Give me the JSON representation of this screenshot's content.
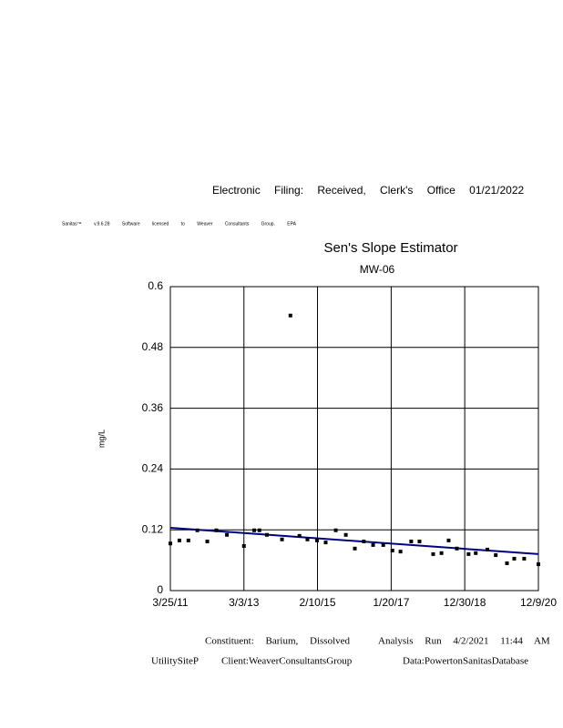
{
  "header": {
    "filing": "Electronic Filing: Received, Clerk's Office 01/21/2022",
    "license": "Sanitas™ v.9.6.28 Software licensed to Weaver Consultants Group. EPA"
  },
  "chart_data": {
    "type": "scatter",
    "title": "Sen's Slope Estimator",
    "subtitle": "MW-06",
    "y_label": "mg/L",
    "x": [
      "2011-03-25",
      "2011-06-20",
      "2011-09-15",
      "2011-12-10",
      "2012-03-15",
      "2012-06-10",
      "2012-09-20",
      "2013-03-03",
      "2013-06-10",
      "2013-07-30",
      "2013-10-10",
      "2014-03-05",
      "2014-05-25",
      "2014-08-20",
      "2014-11-05",
      "2015-02-05",
      "2015-04-30",
      "2015-08-05",
      "2015-11-10",
      "2016-02-05",
      "2016-05-01",
      "2016-07-30",
      "2016-11-05",
      "2017-02-01",
      "2017-04-20",
      "2017-08-01",
      "2017-10-20",
      "2018-03-01",
      "2018-05-20",
      "2018-07-28",
      "2018-10-15",
      "2019-02-05",
      "2019-04-15",
      "2019-08-05",
      "2019-10-25",
      "2020-02-10",
      "2020-04-20",
      "2020-07-25",
      "2020-12-09"
    ],
    "values": [
      0.093,
      0.099,
      0.099,
      0.119,
      0.097,
      0.119,
      0.11,
      0.088,
      0.119,
      0.119,
      0.11,
      0.101,
      0.543,
      0.108,
      0.101,
      0.099,
      0.095,
      0.119,
      0.11,
      0.083,
      0.097,
      0.09,
      0.09,
      0.079,
      0.077,
      0.097,
      0.097,
      0.072,
      0.074,
      0.099,
      0.083,
      0.072,
      0.074,
      0.081,
      0.07,
      0.054,
      0.063,
      0.063,
      0.052
    ],
    "color": "#000000",
    "trend": {
      "x": [
        "2011-03-25",
        "2020-12-09"
      ],
      "values": [
        0.124,
        0.072
      ],
      "color": "#000080"
    },
    "xlim": [
      "2011-03-25",
      "2020-12-09"
    ],
    "xticks": [
      {
        "value": "2011-03-25",
        "label": "3/25/11"
      },
      {
        "value": "2013-03-03",
        "label": "3/3/13"
      },
      {
        "value": "2015-02-10",
        "label": "2/10/15"
      },
      {
        "value": "2017-01-20",
        "label": "1/20/17"
      },
      {
        "value": "2018-12-30",
        "label": "12/30/18"
      },
      {
        "value": "2020-12-09",
        "label": "12/9/20"
      }
    ],
    "ylim": [
      0,
      0.6
    ],
    "yticks": [
      0,
      0.12,
      0.24,
      0.36,
      0.48,
      0.6
    ],
    "grid": true
  },
  "footer": {
    "constituent": "Constituent: Barium, Dissolved",
    "analysis": "Analysis Run 4/2/2021 11:44 AM",
    "site": "UtilitySiteP",
    "client": "Client:WeaverConsultantsGroup",
    "data": "Data:PowertonSanitasDatabase"
  }
}
